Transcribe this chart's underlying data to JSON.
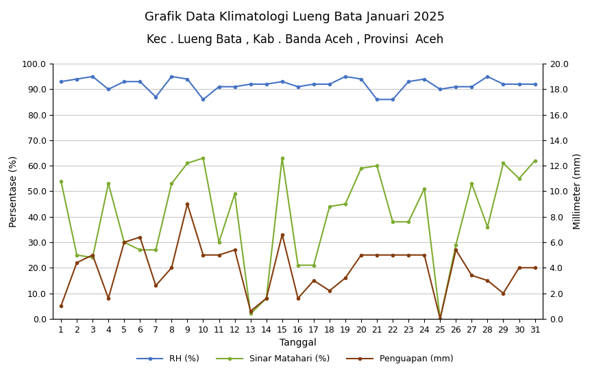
{
  "title_line1": "Grafik Data Klimatologi Lueng Bata Januari 2025",
  "title_line2": "Kec . Lueng Bata , Kab . Banda Aceh , Provinsi  Aceh",
  "xlabel": "Tanggal",
  "ylabel_left": "Persentase (%)",
  "ylabel_right": "Millimeter (mm)",
  "x": [
    1,
    2,
    3,
    4,
    5,
    6,
    7,
    8,
    9,
    10,
    11,
    12,
    13,
    14,
    15,
    16,
    17,
    18,
    19,
    20,
    21,
    22,
    23,
    24,
    25,
    26,
    27,
    28,
    29,
    30,
    31
  ],
  "rh": [
    93,
    94,
    95,
    90,
    93,
    93,
    87,
    95,
    94,
    86,
    91,
    91,
    92,
    92,
    93,
    91,
    92,
    92,
    95,
    94,
    86,
    86,
    93,
    94,
    90,
    91,
    91,
    95,
    92,
    92,
    92
  ],
  "sinar": [
    54,
    25,
    24,
    53,
    30,
    27,
    27,
    53,
    61,
    63,
    30,
    49,
    2,
    8,
    63,
    21,
    21,
    44,
    45,
    59,
    60,
    38,
    38,
    51,
    0,
    29,
    53,
    36,
    61,
    55,
    62
  ],
  "penguapan_pct": [
    5,
    22,
    25,
    8,
    30,
    32,
    13,
    20,
    45,
    25,
    25,
    27,
    3,
    8,
    33,
    8,
    15,
    11,
    16,
    25,
    25,
    25,
    25,
    25,
    0,
    27,
    17,
    15,
    10,
    20,
    20
  ],
  "rh_color": "#4472c4",
  "sinar_color": "#7dac30",
  "penguapan_color": "#843c0c",
  "ylim_left": [
    0,
    100
  ],
  "ylim_right": [
    0,
    20
  ],
  "yticks_left": [
    0,
    10,
    20,
    30,
    40,
    50,
    60,
    70,
    80,
    90,
    100
  ],
  "yticks_right": [
    0,
    2,
    4,
    6,
    8,
    10,
    12,
    14,
    16,
    18,
    20
  ],
  "grid_color": "#c8c8c8",
  "bg_color": "#ffffff",
  "legend_labels": [
    "RH (%)",
    "Sinar Matahari (%)",
    "Penguapan (mm)"
  ],
  "title_fontsize": 13,
  "subtitle_fontsize": 12,
  "axis_fontsize": 10,
  "tick_fontsize": 9,
  "legend_fontsize": 9,
  "line_width": 1.5,
  "marker": "o",
  "marker_size": 3,
  "scale_factor": 5
}
